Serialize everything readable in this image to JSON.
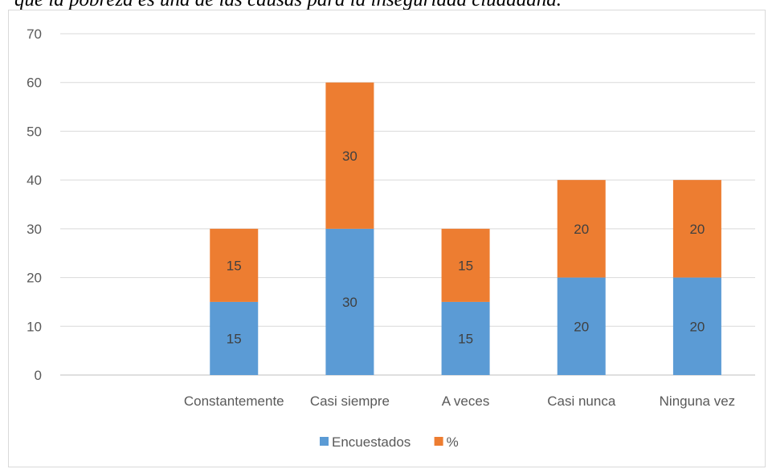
{
  "caption": "que la pobreza es una de las causas para la inseguridad ciudadana.",
  "chart_data": {
    "type": "bar",
    "stacked": true,
    "title": "",
    "xlabel": "",
    "ylabel": "",
    "ylim": [
      0,
      70
    ],
    "yticks": [
      0,
      10,
      20,
      30,
      40,
      50,
      60,
      70
    ],
    "categories": [
      "",
      "Constantemente",
      "Casi siempre",
      "A veces",
      "Casi nunca",
      "Ninguna vez"
    ],
    "series": [
      {
        "name": "Encuestados",
        "color": "#5b9bd5",
        "values": [
          null,
          15,
          30,
          15,
          20,
          20
        ]
      },
      {
        "name": "%",
        "color": "#ed7d31",
        "values": [
          null,
          15,
          30,
          15,
          20,
          20
        ]
      }
    ],
    "grid": true,
    "legend": "bottom"
  }
}
